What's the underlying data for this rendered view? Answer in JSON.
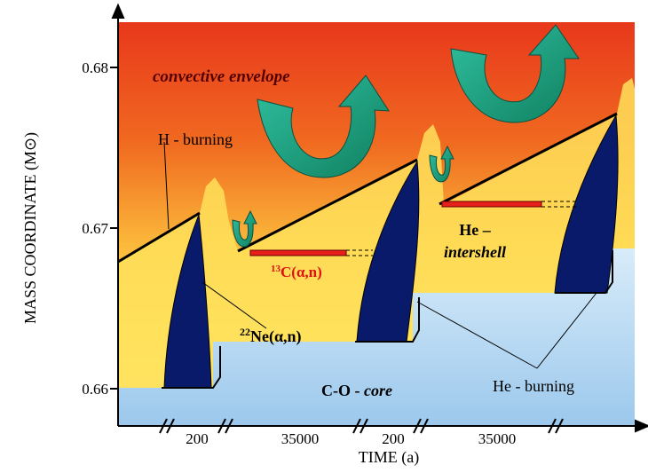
{
  "axes": {
    "y_label": "MASS COORDINATE (M⊙)",
    "x_label": "TIME (a)",
    "y_ticks": [
      "0.68",
      "0.67",
      "0.66"
    ],
    "x_intervals": [
      "200",
      "35000",
      "200",
      "35000"
    ]
  },
  "labels": {
    "envelope": "convective envelope",
    "h_burning": "H - burning",
    "intershell_1": "He –",
    "intershell_2": "intershell",
    "c13": {
      "sup": "13",
      "text": "C(α,n)"
    },
    "ne22": {
      "sup": "22",
      "text": "Ne(α,n)"
    },
    "core": {
      "text": "C-O - ",
      "italic": "core"
    },
    "he_burning": "He - burning"
  }
}
